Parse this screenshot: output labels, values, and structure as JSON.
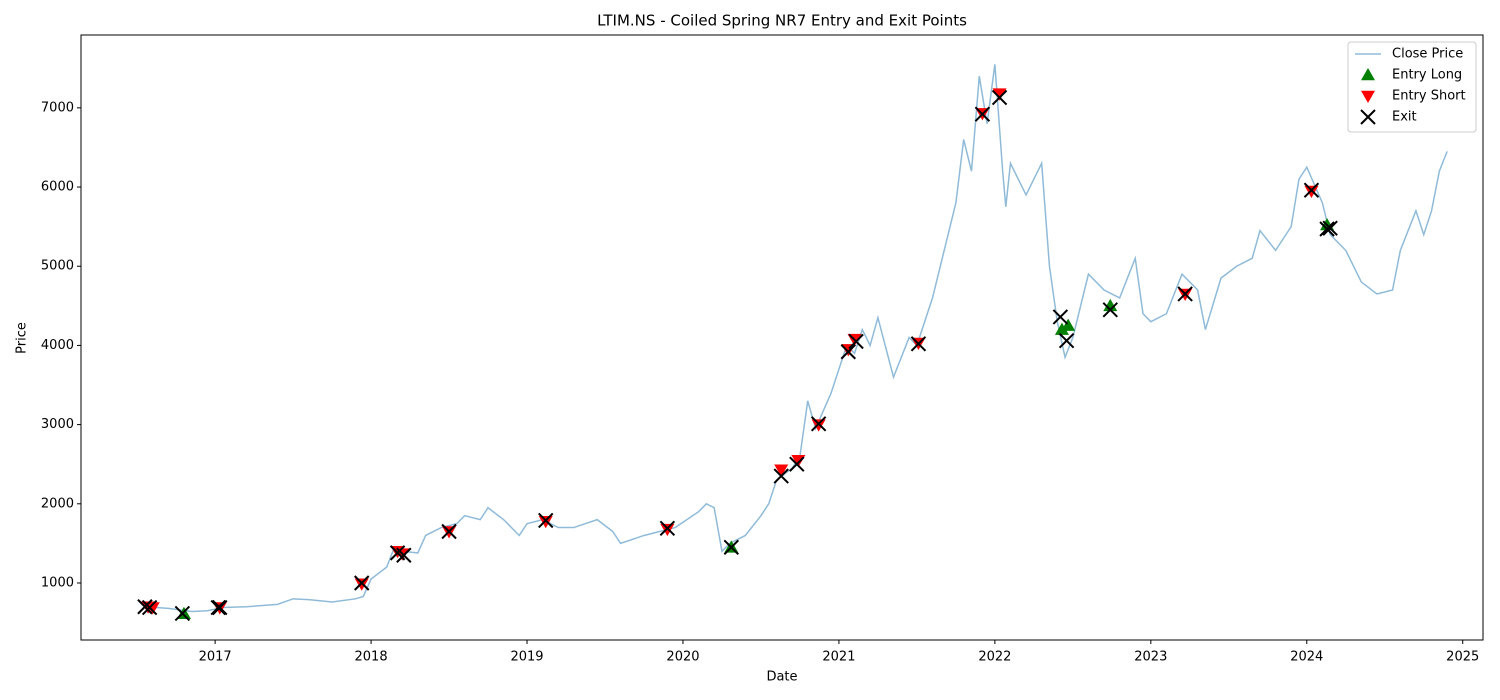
{
  "chart_data": {
    "type": "line",
    "title": "LTIM.NS - Coiled Spring NR7 Entry and Exit Points",
    "x_label": "Date",
    "y_label": "Price",
    "xlim": [
      2016.14,
      2025.13
    ],
    "ylim": [
      280,
      7920
    ],
    "xticks": [
      2017,
      2018,
      2019,
      2020,
      2021,
      2022,
      2023,
      2024,
      2025
    ],
    "yticks": [
      1000,
      2000,
      3000,
      4000,
      5000,
      6000,
      7000
    ],
    "legend": "upper right",
    "series": [
      {
        "name": "Close Price",
        "type": "line",
        "color": "#1f77b4",
        "alpha": 0.5,
        "x": [
          2016.55,
          2016.7,
          2016.85,
          2016.95,
          2017.05,
          2017.2,
          2017.4,
          2017.5,
          2017.6,
          2017.75,
          2017.9,
          2017.95,
          2018.0,
          2018.1,
          2018.15,
          2018.2,
          2018.3,
          2018.35,
          2018.45,
          2018.55,
          2018.6,
          2018.7,
          2018.75,
          2018.85,
          2018.95,
          2019.0,
          2019.1,
          2019.2,
          2019.3,
          2019.45,
          2019.55,
          2019.6,
          2019.75,
          2019.85,
          2019.95,
          2020.1,
          2020.15,
          2020.2,
          2020.25,
          2020.3,
          2020.4,
          2020.5,
          2020.55,
          2020.6,
          2020.7,
          2020.75,
          2020.8,
          2020.85,
          2020.95,
          2021.05,
          2021.1,
          2021.15,
          2021.2,
          2021.25,
          2021.35,
          2021.45,
          2021.5,
          2021.6,
          2021.7,
          2021.75,
          2021.8,
          2021.85,
          2021.9,
          2021.95,
          2022.0,
          2022.05,
          2022.07,
          2022.1,
          2022.2,
          2022.3,
          2022.35,
          2022.4,
          2022.45,
          2022.5,
          2022.55,
          2022.6,
          2022.7,
          2022.8,
          2022.9,
          2022.95,
          2023.0,
          2023.1,
          2023.2,
          2023.3,
          2023.35,
          2023.45,
          2023.55,
          2023.65,
          2023.7,
          2023.8,
          2023.9,
          2023.95,
          2024.0,
          2024.1,
          2024.15,
          2024.25,
          2024.35,
          2024.45,
          2024.55,
          2024.6,
          2024.7,
          2024.75,
          2024.8,
          2024.85,
          2024.9
        ],
        "values": [
          700,
          680,
          640,
          650,
          690,
          700,
          730,
          800,
          790,
          760,
          800,
          830,
          1050,
          1200,
          1450,
          1400,
          1380,
          1600,
          1700,
          1750,
          1850,
          1800,
          1950,
          1800,
          1600,
          1750,
          1800,
          1700,
          1700,
          1800,
          1650,
          1500,
          1600,
          1650,
          1700,
          1900,
          2000,
          1950,
          1400,
          1500,
          1600,
          1850,
          2000,
          2300,
          2450,
          2600,
          3300,
          2950,
          3400,
          4000,
          3900,
          4200,
          4000,
          4350,
          3600,
          4100,
          4000,
          4600,
          5400,
          5800,
          6600,
          6200,
          7400,
          6800,
          7550,
          6200,
          5750,
          6300,
          5900,
          6300,
          5000,
          4300,
          3850,
          4100,
          4500,
          4900,
          4700,
          4600,
          5100,
          4400,
          4300,
          4400,
          4900,
          4700,
          4200,
          4850,
          5000,
          5100,
          5450,
          5200,
          5500,
          6100,
          6250,
          5800,
          5400,
          5200,
          4800,
          4650,
          4700,
          5200,
          5700,
          5400,
          5700,
          6200,
          6450
        ]
      },
      {
        "name": "Entry Long",
        "type": "scatter",
        "marker": "^",
        "color": "#008000",
        "x": [
          2016.8,
          2020.31,
          2022.43,
          2022.47,
          2022.74,
          2024.13
        ],
        "values": [
          612,
          1450,
          4200,
          4250,
          4500,
          5520
        ]
      },
      {
        "name": "Entry Short",
        "type": "scatter",
        "marker": "v",
        "color": "#ff0000",
        "x": [
          2016.57,
          2016.6,
          2017.03,
          2017.94,
          2018.17,
          2018.2,
          2018.5,
          2019.12,
          2019.9,
          2020.63,
          2020.74,
          2020.87,
          2021.06,
          2021.1,
          2021.51,
          2021.92,
          2022.03,
          2023.22,
          2024.03
        ],
        "values": [
          700,
          690,
          690,
          990,
          1400,
          1370,
          1650,
          1780,
          1680,
          2430,
          2550,
          3000,
          3950,
          4080,
          4030,
          6930,
          7180,
          4650,
          5950
        ]
      },
      {
        "name": "Exit",
        "type": "scatter",
        "marker": "x",
        "color": "#000000",
        "x": [
          2016.55,
          2016.58,
          2016.79,
          2017.02,
          2017.03,
          2017.94,
          2018.17,
          2018.21,
          2018.5,
          2019.12,
          2019.9,
          2020.31,
          2020.63,
          2020.73,
          2020.87,
          2021.06,
          2021.11,
          2021.51,
          2021.92,
          2022.03,
          2022.42,
          2022.46,
          2022.74,
          2023.22,
          2024.03,
          2024.13,
          2024.15
        ],
        "values": [
          700,
          690,
          615,
          690,
          690,
          1000,
          1380,
          1350,
          1650,
          1790,
          1690,
          1450,
          2350,
          2500,
          3010,
          3920,
          4050,
          4020,
          6920,
          7130,
          4360,
          4060,
          4450,
          4650,
          5960,
          5470,
          5480
        ]
      }
    ]
  }
}
